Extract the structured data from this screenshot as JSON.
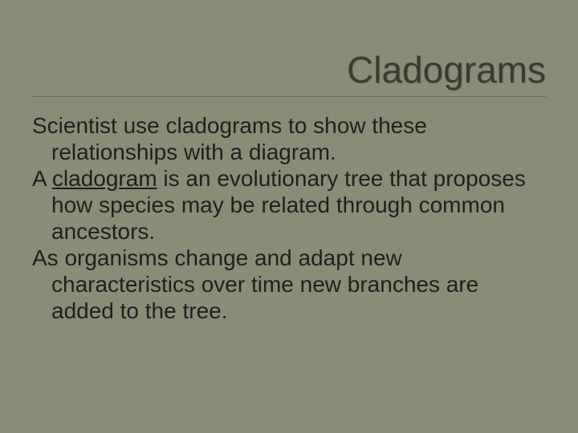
{
  "slide": {
    "background_color": "#8a8d75",
    "title_color": "#3a3c31",
    "body_color": "#1f1f1f",
    "rule_color": "#6a6d58",
    "title_fontsize": 46,
    "body_fontsize": 28,
    "title": "Cladograms",
    "p1": "Scientist use cladograms to show these relationships with a diagram.",
    "p2a": "A ",
    "p2u": "cladogram",
    "p2b": " is an evolutionary tree that proposes how species may be related through common ancestors.",
    "p3": "As organisms change and adapt new characteristics over time new branches are added to the tree."
  }
}
